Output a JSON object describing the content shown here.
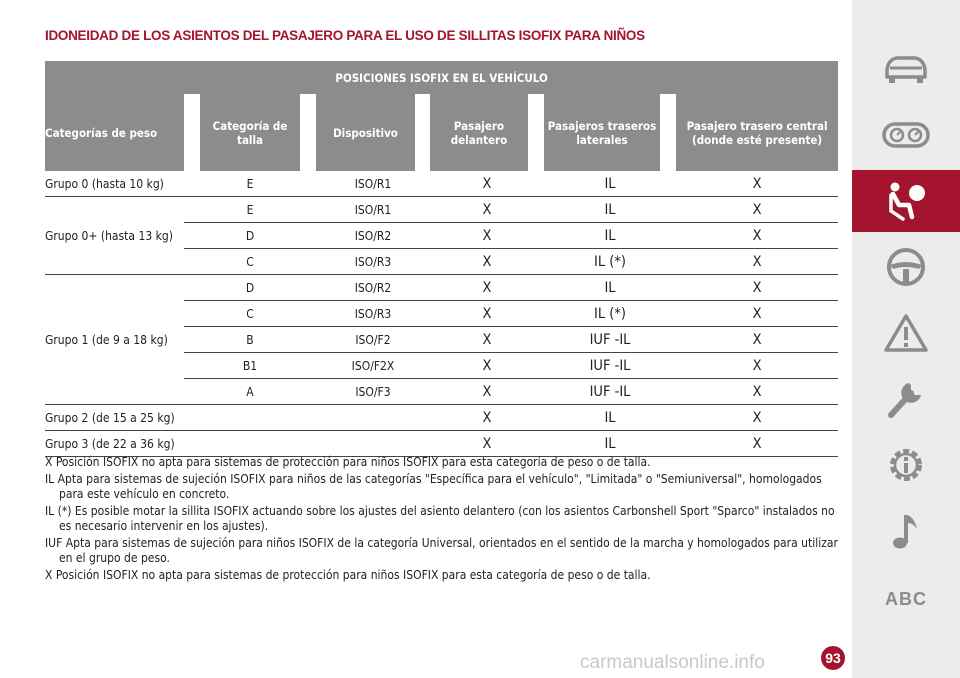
{
  "title": "IDONEIDAD DE LOS ASIENTOS DEL PASAJERO PARA EL USO DE SILLITAS ISOFIX PARA NIÑOS",
  "table": {
    "main_header": "POSICIONES ISOFIX EN EL VEHÍCULO",
    "columns": [
      "Categorías de peso",
      "Categoría de talla",
      "Dispositivo",
      "Pasajero delantero",
      "Pasajeros traseros laterales",
      "Pasajero trasero central (donde esté presente)"
    ],
    "groups": [
      {
        "label": "Grupo 0 (hasta 10 kg)",
        "rows": [
          [
            "E",
            "ISO/R1",
            "X",
            "IL",
            "X"
          ]
        ]
      },
      {
        "label": "Grupo 0+ (hasta 13 kg)",
        "rows": [
          [
            "E",
            "ISO/R1",
            "X",
            "IL",
            "X"
          ],
          [
            "D",
            "ISO/R2",
            "X",
            "IL",
            "X"
          ],
          [
            "C",
            "ISO/R3",
            "X",
            "IL (*)",
            "X"
          ]
        ]
      },
      {
        "label": "Grupo 1 (de 9 a 18 kg)",
        "rows": [
          [
            "D",
            "ISO/R2",
            "X",
            "IL",
            "X"
          ],
          [
            "C",
            "ISO/R3",
            "X",
            "IL (*)",
            "X"
          ],
          [
            "B",
            "ISO/F2",
            "X",
            "IUF -IL",
            "X"
          ],
          [
            "B1",
            "ISO/F2X",
            "X",
            "IUF -IL",
            "X"
          ],
          [
            "A",
            "ISO/F3",
            "X",
            "IUF -IL",
            "X"
          ]
        ]
      },
      {
        "label": "Grupo 2 (de 15 a 25 kg)",
        "rows": [
          [
            "",
            "",
            "X",
            "IL",
            "X"
          ]
        ]
      },
      {
        "label": "Grupo 3 (de 22 a 36 kg)",
        "rows": [
          [
            "",
            "",
            "X",
            "IL",
            "X"
          ]
        ]
      }
    ]
  },
  "notes": [
    "X Posición ISOFIX no apta para sistemas de protección para niños ISOFIX para esta categoría de peso o de talla.",
    "IL Apta para sistemas de sujeción ISOFIX para niños de las categorías \"Específica para el vehículo\", \"Limitada\" o \"Semiuniversal\", homologados para este vehículo en concreto.",
    "IL (*) Es posible motar la sillita ISOFIX actuando sobre los ajustes del asiento delantero (con los asientos Carbonshell Sport \"Sparco\" instalados no es necesario intervenir en los ajustes).",
    "IUF Apta para sistemas de sujeción para niños ISOFIX de la categoría Universal, orientados en el sentido de la marcha y homologados para utilizar en el grupo de peso.",
    "X Posición ISOFIX no apta para sistemas de protección para niños ISOFIX para esta categoría de peso o de talla."
  ],
  "sidebar": {
    "items": [
      {
        "icon": "car-icon"
      },
      {
        "icon": "dashboard-gauges-icon"
      },
      {
        "icon": "airbag-seat-icon",
        "active": true
      },
      {
        "icon": "steering-wheel-icon"
      },
      {
        "icon": "warning-triangle-icon"
      },
      {
        "icon": "wrench-icon"
      },
      {
        "icon": "technical-data-gear-icon"
      },
      {
        "icon": "music-note-icon"
      },
      {
        "label": "ABC"
      }
    ],
    "active_color": "#a5142f"
  },
  "page_number": "93",
  "watermark": "carmanualsonline.info",
  "colors": {
    "accent": "#a5142f",
    "header_bg": "#8c8c8c",
    "sidebar_bg": "#ececec"
  }
}
